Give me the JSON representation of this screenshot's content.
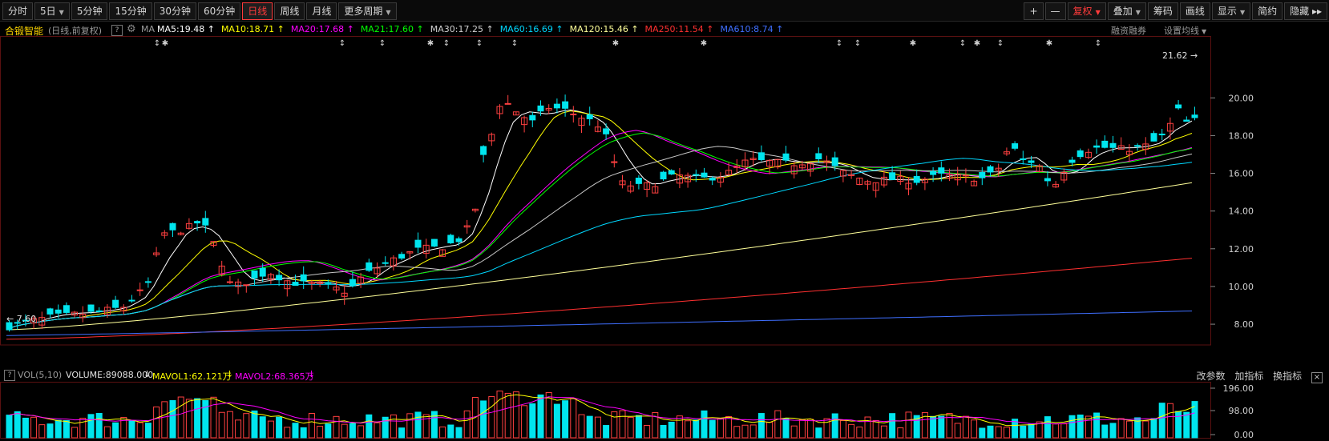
{
  "toolbar": {
    "periods": [
      {
        "label": "分时",
        "active": false
      },
      {
        "label": "5日",
        "active": false,
        "dropdown": true
      },
      {
        "label": "5分钟",
        "active": false
      },
      {
        "label": "15分钟",
        "active": false
      },
      {
        "label": "30分钟",
        "active": false
      },
      {
        "label": "60分钟",
        "active": false
      },
      {
        "label": "日线",
        "active": true
      },
      {
        "label": "周线",
        "active": false
      },
      {
        "label": "月线",
        "active": false
      },
      {
        "label": "更多周期",
        "active": false,
        "dropdown": true
      }
    ],
    "right": {
      "plus": "+",
      "minus": "—",
      "fuquan": "复权",
      "diejia": "叠加",
      "chouma": "筹码",
      "huaxian": "画线",
      "xianshi": "显示",
      "jianyue": "简约",
      "yincang": "隐藏",
      "fast_forward": "▸▸"
    }
  },
  "legend": {
    "stock_name": "合锻智能",
    "mode": "(日线,前复权)",
    "help": "?",
    "ma_label": "MA",
    "items": [
      {
        "label": "MA5:19.48",
        "arrow": "↑",
        "color": "#ffffff"
      },
      {
        "label": "MA10:18.71",
        "arrow": "↑",
        "color": "#ffff00"
      },
      {
        "label": "MA20:17.68",
        "arrow": "↑",
        "color": "#ff00ff"
      },
      {
        "label": "MA21:17.60",
        "arrow": "↑",
        "color": "#00ff00"
      },
      {
        "label": "MA30:17.25",
        "arrow": "↑",
        "color": "#d0d0d0"
      },
      {
        "label": "MA60:16.69",
        "arrow": "↑",
        "color": "#00d8ff"
      },
      {
        "label": "MA120:15.46",
        "arrow": "↑",
        "color": "#ffff99"
      },
      {
        "label": "MA250:11.54",
        "arrow": "↑",
        "color": "#ff3030"
      },
      {
        "label": "MA610:8.74",
        "arrow": "↑",
        "color": "#3f6fff"
      }
    ],
    "financing": "融资融券",
    "settings": "设置均线"
  },
  "price_axis": {
    "ticks": [
      "20.00",
      "18.00",
      "16.00",
      "14.00",
      "12.00",
      "10.00",
      "8.00"
    ],
    "min": 6.9,
    "max": 22.6
  },
  "annotations": {
    "high": "21.62",
    "low": "7.60"
  },
  "event_markers": [
    "↕",
    "✱",
    "↕",
    "↕",
    "✱",
    "↕",
    "↕",
    "↕",
    "✱",
    "✱",
    "↕",
    "↕",
    "✱",
    "↕",
    "✱",
    "↕",
    "✱",
    "↕"
  ],
  "vol": {
    "help": "?",
    "name": "VOL(5,10)",
    "volume": "VOLUME:89088.000",
    "volume_arrow": "↓",
    "mavol1": "MAVOL1:62.121万",
    "mavol1_arrow": "↓",
    "mavol2": "MAVOL2:68.365万",
    "mavol2_arrow": "↓",
    "links": [
      "改参数",
      "加指标",
      "换指标"
    ],
    "close": "×",
    "axis": [
      "196.00",
      "98.00",
      "0.00"
    ]
  },
  "colors": {
    "up": "#ff4040",
    "down": "#00e5ee",
    "bg": "#000000",
    "grid": "#5a1010"
  }
}
